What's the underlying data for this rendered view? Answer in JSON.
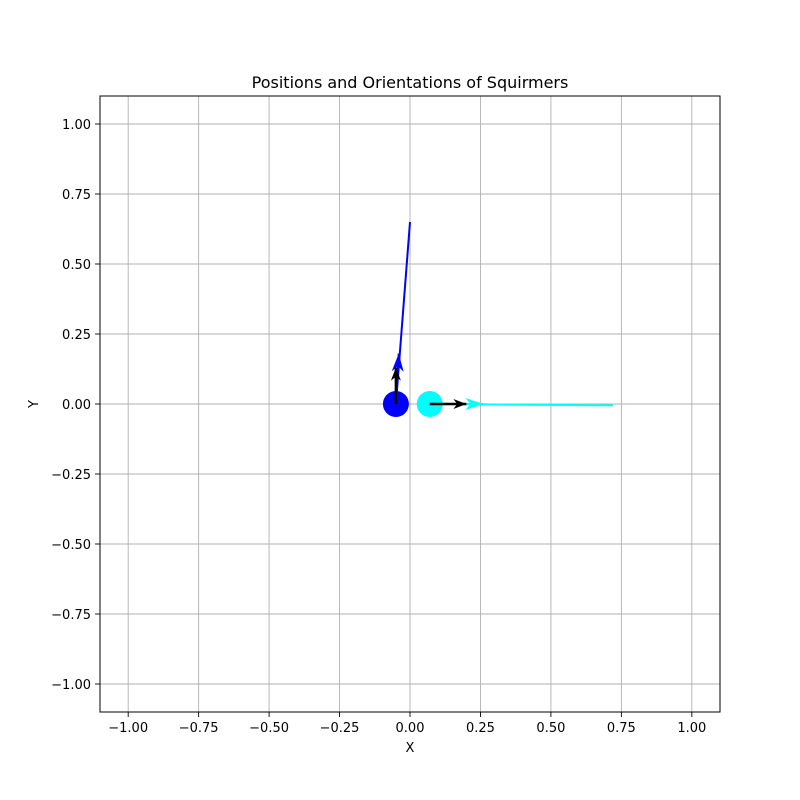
{
  "chart_data": {
    "type": "scatter",
    "title": "Positions and Orientations of Squirmers",
    "xlabel": "X",
    "ylabel": "Y",
    "xlim": [
      -1.1,
      1.1
    ],
    "ylim": [
      -1.1,
      1.1
    ],
    "grid": true,
    "xticks": [
      -1.0,
      -0.75,
      -0.5,
      -0.25,
      0.0,
      0.25,
      0.5,
      0.75,
      1.0
    ],
    "yticks": [
      -1.0,
      -0.75,
      -0.5,
      -0.25,
      0.0,
      0.25,
      0.5,
      0.75,
      1.0
    ],
    "xtick_labels": [
      "−1.00",
      "−0.75",
      "−0.50",
      "−0.25",
      "0.00",
      "0.25",
      "0.50",
      "0.75",
      "1.00"
    ],
    "ytick_labels": [
      "−1.00",
      "−0.75",
      "−0.50",
      "−0.25",
      "0.00",
      "0.25",
      "0.50",
      "0.75",
      "1.00"
    ],
    "squirmers": [
      {
        "color": "#0000ff",
        "x": -0.05,
        "y": 0.0,
        "trajectory": [
          [
            -0.05,
            0.0
          ],
          [
            0.0,
            0.65
          ]
        ],
        "direction_head": [
          -0.04,
          0.18
        ],
        "orientation": [
          0.0,
          0.13
        ]
      },
      {
        "color": "#00ffff",
        "x": 0.07,
        "y": 0.0,
        "trajectory": [
          [
            0.07,
            0.0
          ],
          [
            0.72,
            -0.005
          ]
        ],
        "direction_head": [
          0.26,
          0.0
        ],
        "orientation": [
          0.13,
          0.0
        ]
      }
    ],
    "orientation_arrow_color": "#000000"
  }
}
